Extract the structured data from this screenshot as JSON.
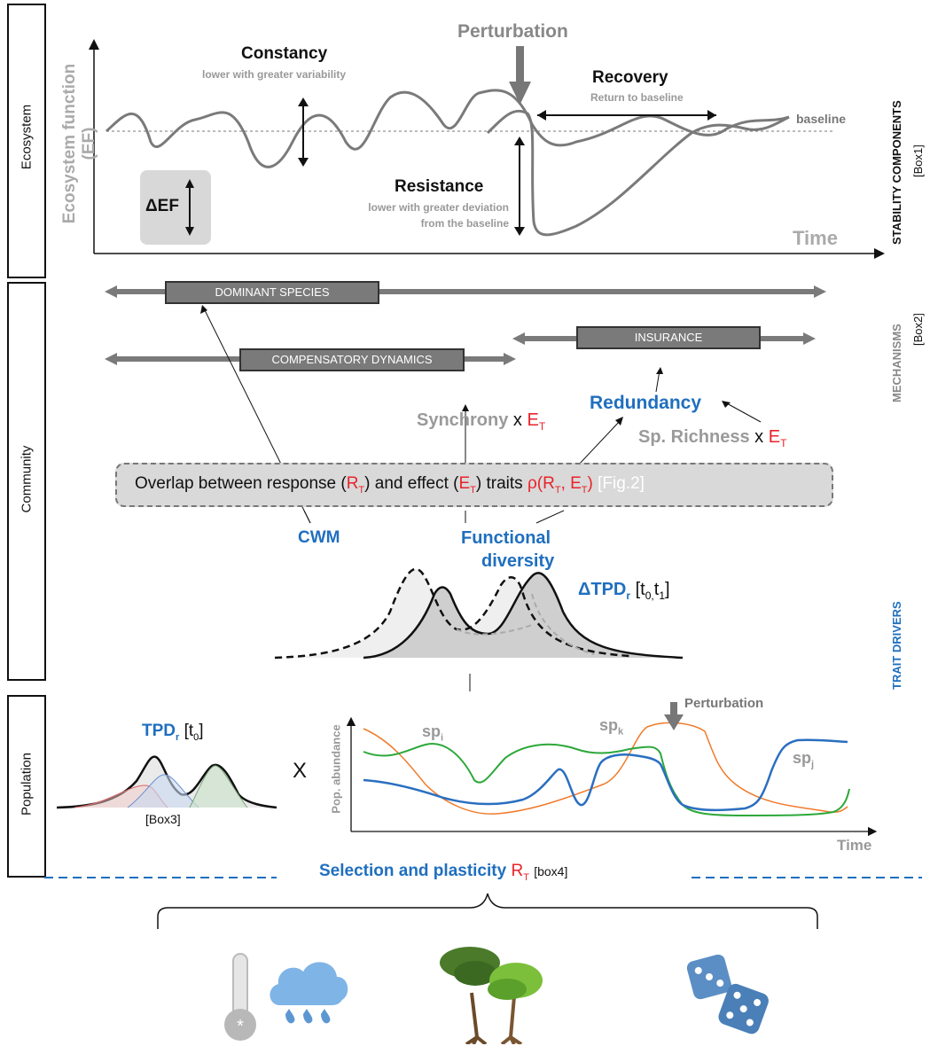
{
  "side_boxes": {
    "ecosystem": "Ecosystem",
    "community": "Community",
    "population": "Population"
  },
  "right_labels": {
    "stability": "STABILITY COMPONENTS",
    "stability_ref": "[Box1]",
    "mechanisms": "MECHANISMS",
    "mechanisms_ref": "[Box2]",
    "trait_drivers": "TRAIT DRIVERS"
  },
  "ecosystem_panel": {
    "y_axis": "Ecosystem function (EF)",
    "x_axis": "Time",
    "perturbation": "Perturbation",
    "constancy": "Constancy",
    "constancy_sub": "lower with greater variability",
    "recovery": "Recovery",
    "recovery_sub": "Return to baseline",
    "baseline": "baseline",
    "resistance": "Resistance",
    "resistance_sub1": "lower with greater deviation",
    "resistance_sub2": "from the baseline",
    "delta_ef": "ΔEF"
  },
  "mechanisms": {
    "dominant": "DOMINANT SPECIES",
    "compensatory": "COMPENSATORY DYNAMICS",
    "insurance": "INSURANCE"
  },
  "community_panel": {
    "redundancy": "Redundancy",
    "synchrony": "Synchrony",
    "synchrony_x": "x",
    "richness": "Sp. Richness",
    "richness_x": "x",
    "et": "E",
    "et_sub": "T",
    "overlap_pre": "Overlap between response (",
    "overlap_rt": "R",
    "overlap_mid": ") and effect (",
    "overlap_et": "E",
    "overlap_post": ") traits",
    "overlap_rho": "ρ(R",
    "overlap_rho_mid": ", E",
    "overlap_rho_end": ")",
    "overlap_fig": "[Fig.2]",
    "cwm": "CWM",
    "fd1": "Functional",
    "fd2": "diversity",
    "dtpd": "ΔTPD",
    "dtpd_sub": "r",
    "dtpd_times": "[t",
    "dtpd_t0": "0,",
    "dtpd_t": "t",
    "dtpd_t1": "1",
    "dtpd_end": "]"
  },
  "population_panel": {
    "tpd": "TPD",
    "tpd_sub": "r",
    "tpd_t": "[t",
    "tpd_t0": "0",
    "tpd_end": "]",
    "box3": "[Box3]",
    "times": "X",
    "y_axis": "Pop. abundance",
    "x_axis": "Time",
    "perturbation": "Perturbation",
    "sp_i": "sp",
    "sp_i_sub": "i",
    "sp_k": "sp",
    "sp_k_sub": "k",
    "sp_j": "sp",
    "sp_j_sub": "j"
  },
  "selection": {
    "label": "Selection and plasticity",
    "rt": "R",
    "rt_sub": "T",
    "box": "[box4]"
  },
  "colors": {
    "blue": "#1f6fbf",
    "red": "#e8232a",
    "grey": "#9a9a9a",
    "green": "#2ca83a",
    "orange": "#f07a2a",
    "species_blue": "#2a6fc0"
  },
  "icons": [
    "thermometer-icon",
    "rain-cloud-icon",
    "trees-icon",
    "dice-icon"
  ]
}
